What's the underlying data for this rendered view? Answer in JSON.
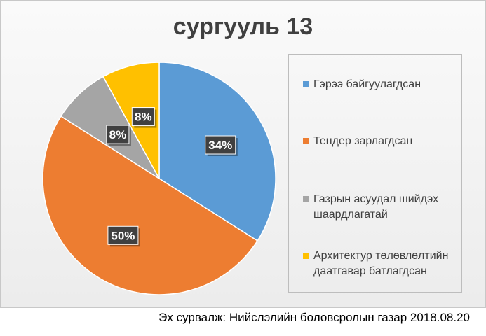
{
  "chart_data": {
    "type": "pie",
    "title": "сургууль 13",
    "categories": [
      "Гэрээ байгуулагдсан",
      "Тендер зарлагдсан",
      "Газрын асуудал шийдэх шаардлагатай",
      "Архитектур төлөвлөлтийн даатгавар батлагдсан"
    ],
    "values": [
      34,
      50,
      8,
      8
    ],
    "labels": [
      "34%",
      "50%",
      "8%",
      "8%"
    ],
    "colors": [
      "#5b9bd5",
      "#ed7d31",
      "#a5a5a5",
      "#ffc000"
    ],
    "legend_position": "right"
  },
  "legend": [
    {
      "label": "Гэрээ байгуулагдсан",
      "color": "#5b9bd5"
    },
    {
      "label": "Тендер зарлагдсан",
      "color": "#ed7d31"
    },
    {
      "label": "Газрын асуудал шийдэх шаардлагатай",
      "color": "#a5a5a5"
    },
    {
      "label": "Архитектур төлөвлөлтийн даатгавар батлагдсан",
      "color": "#ffc000"
    }
  ],
  "source_text": "Эх сурвалж: Нийслэлийн боловсролын газар 2018.08.20"
}
